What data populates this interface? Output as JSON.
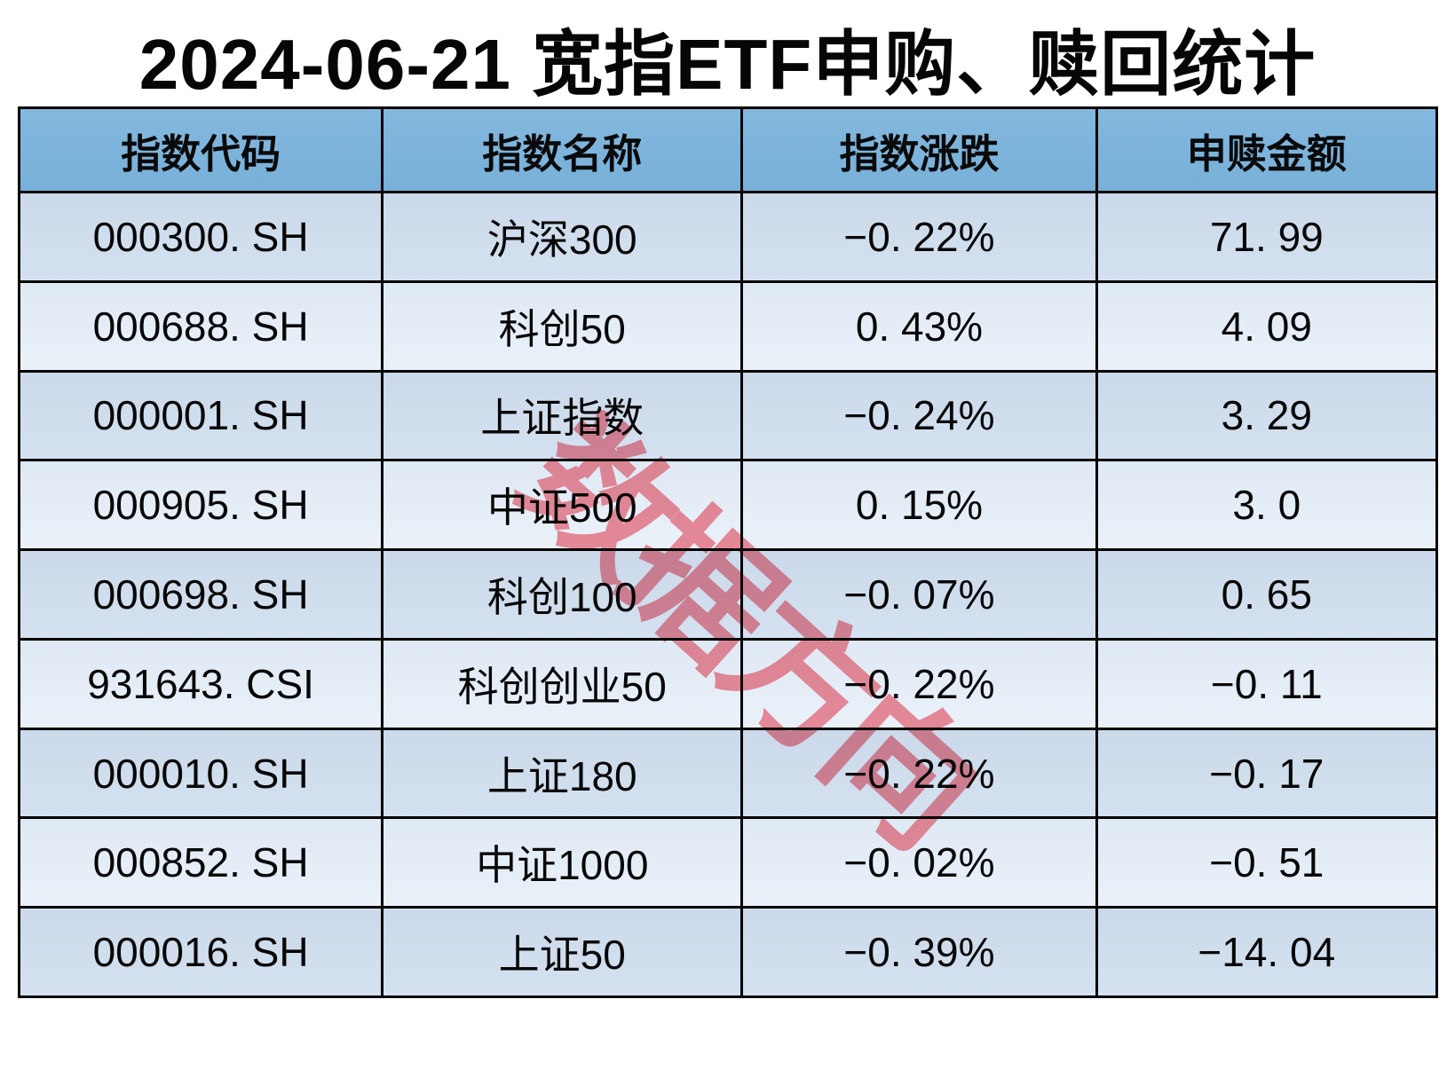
{
  "title": "2024-06-21 宽指ETF申购、赎回统计",
  "watermark": {
    "text": "数据方向",
    "color": "#ef8a95"
  },
  "colors": {
    "header_bg": "#7bb3db",
    "row_odd_bg": "#cfdcec",
    "row_even_bg": "#e4edf6",
    "border": "#000000",
    "text": "#070707",
    "watermark": "#ef8a95"
  },
  "table": {
    "headers": [
      "指数代码",
      "指数名称",
      "指数涨跌",
      "申赎金额"
    ],
    "rows": [
      {
        "code": "000300. SH",
        "name": "沪深300",
        "change": "−0. 22%",
        "amount": "71. 99"
      },
      {
        "code": "000688. SH",
        "name": "科创50",
        "change": "0. 43%",
        "amount": "4. 09"
      },
      {
        "code": "000001. SH",
        "name": "上证指数",
        "change": "−0. 24%",
        "amount": "3. 29"
      },
      {
        "code": "000905. SH",
        "name": "中证500",
        "change": "0. 15%",
        "amount": "3. 0"
      },
      {
        "code": "000698. SH",
        "name": "科创100",
        "change": "−0. 07%",
        "amount": "0. 65"
      },
      {
        "code": "931643. CSI",
        "name": "科创创业50",
        "change": "−0. 22%",
        "amount": "−0. 11"
      },
      {
        "code": "000010. SH",
        "name": "上证180",
        "change": "−0. 22%",
        "amount": "−0. 17"
      },
      {
        "code": "000852. SH",
        "name": "中证1000",
        "change": "−0. 02%",
        "amount": "−0. 51"
      },
      {
        "code": "000016. SH",
        "name": "上证50",
        "change": "−0. 39%",
        "amount": "−14. 04"
      }
    ]
  },
  "chart_data": {
    "type": "table",
    "title": "2024-06-21 宽指ETF申购、赎回统计",
    "columns": [
      "指数代码",
      "指数名称",
      "指数涨跌",
      "申赎金额"
    ],
    "rows": [
      [
        "000300.SH",
        "沪深300",
        -0.22,
        71.99
      ],
      [
        "000688.SH",
        "科创50",
        0.43,
        4.09
      ],
      [
        "000001.SH",
        "上证指数",
        -0.24,
        3.29
      ],
      [
        "000905.SH",
        "中证500",
        0.15,
        3.0
      ],
      [
        "000698.SH",
        "科创100",
        -0.07,
        0.65
      ],
      [
        "931643.CSI",
        "科创创业50",
        -0.22,
        -0.11
      ],
      [
        "000010.SH",
        "上证180",
        -0.22,
        -0.17
      ],
      [
        "000852.SH",
        "中证1000",
        -0.02,
        -0.51
      ],
      [
        "000016.SH",
        "上证50",
        -0.39,
        -14.04
      ]
    ],
    "units": {
      "指数涨跌": "%",
      "申赎金额": "亿元 (implied)"
    }
  }
}
